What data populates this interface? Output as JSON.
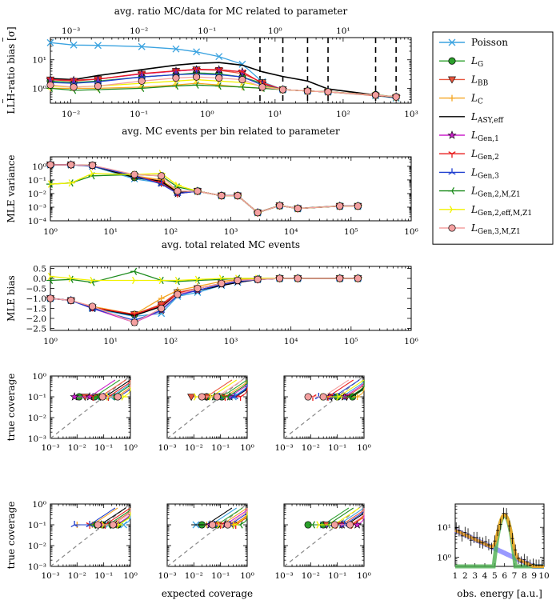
{
  "chart_data": [
    {
      "panel": "llh",
      "type": "line",
      "xscale": "log",
      "yscale": "log",
      "xlim": [
        0.005,
        1000
      ],
      "ylim": [
        0.3,
        60
      ],
      "xlabel": "avg. MC events per bin related to parameter",
      "ylabel": "LLH-ratio bias [σ]",
      "top_xlabel": "avg. ratio MC/data for MC related to parameter",
      "top_xlim": [
        0.0005,
        100
      ],
      "xticks": [
        "10⁻²",
        "10⁻¹",
        "10⁰",
        "10¹",
        "10²",
        "10³"
      ],
      "yticks": [
        "10⁰",
        "10¹"
      ],
      "top_xticks": [
        "10⁻³",
        "10⁻²",
        "10⁻¹",
        "10⁰",
        "10¹"
      ],
      "dashed_x": [
        6,
        13,
        30,
        60,
        300,
        600
      ],
      "x": [
        0.005,
        0.011,
        0.025,
        0.11,
        0.35,
        0.7,
        1.5,
        3.3,
        6.5,
        13,
        30,
        60,
        300,
        600
      ],
      "series": [
        {
          "name": "Poisson",
          "values": [
            40,
            33,
            32,
            29,
            24,
            19,
            13,
            7,
            1.7,
            0.9,
            0.8,
            0.75,
            0.55,
            0.45
          ]
        },
        {
          "name": "L_G",
          "values": [
            1.8,
            1.6,
            1.8,
            2.5,
            3,
            3.5,
            3.2,
            2.5,
            1.5,
            0.9,
            0.8,
            0.75,
            0.6,
            0.5
          ]
        },
        {
          "name": "L_BB",
          "values": [
            2,
            1.8,
            2.1,
            3.2,
            4,
            4.5,
            4.3,
            3.3,
            1.6,
            0.9,
            0.8,
            0.75,
            0.55,
            0.48
          ]
        },
        {
          "name": "L_C",
          "values": [
            1,
            1,
            1,
            1.1,
            1.3,
            1.5,
            1.3,
            1.1,
            1,
            0.9,
            0.8,
            0.75,
            0.58,
            0.5
          ]
        },
        {
          "name": "L_ASY,eff",
          "values": [
            2.2,
            2,
            2.8,
            4.5,
            6.5,
            7.5,
            8,
            6.5,
            3.8,
            2.6,
            1.8,
            0.95,
            0.58,
            0.48
          ]
        },
        {
          "name": "L_Gen,1",
          "values": [
            2,
            1.9,
            2.1,
            3.2,
            4,
            4.5,
            4.5,
            3.8,
            1.5,
            0.9,
            0.8,
            0.75,
            0.58,
            0.5
          ]
        },
        {
          "name": "L_Gen,2",
          "values": [
            2,
            1.9,
            2.1,
            3.3,
            4.1,
            4.6,
            4.5,
            3.8,
            1.5,
            0.9,
            0.8,
            0.75,
            0.58,
            0.5
          ]
        },
        {
          "name": "L_Gen,3",
          "values": [
            1.6,
            1.5,
            1.7,
            2.5,
            3,
            3.2,
            3,
            2.5,
            1.3,
            0.9,
            0.8,
            0.75,
            0.58,
            0.5
          ]
        },
        {
          "name": "L_Gen,2,M,Z1",
          "values": [
            1,
            0.85,
            0.9,
            1,
            1.2,
            1.3,
            1.2,
            1.1,
            1,
            0.9,
            0.8,
            0.75,
            0.58,
            0.5
          ]
        },
        {
          "name": "L_Gen,2,eff,M,Z1",
          "values": [
            1.2,
            1.1,
            1.2,
            1.5,
            1.8,
            2,
            1.8,
            1.6,
            1.2,
            0.9,
            0.8,
            0.75,
            0.58,
            0.5
          ]
        },
        {
          "name": "L_Gen,3,M,Z1",
          "values": [
            1.3,
            1.1,
            1.2,
            1.8,
            2.3,
            2.5,
            2.3,
            2,
            1.1,
            0.9,
            0.8,
            0.75,
            0.58,
            0.5
          ]
        }
      ]
    },
    {
      "panel": "variance",
      "type": "line",
      "xscale": "log",
      "yscale": "log",
      "xlim": [
        1,
        1000000
      ],
      "ylim": [
        0.0001,
        5
      ],
      "xlabel": "avg. total related MC events",
      "ylabel": "MLE variance",
      "xticks": [
        "10⁰",
        "10¹",
        "10²",
        "10³",
        "10⁴",
        "10⁵",
        "10⁶"
      ],
      "yticks": [
        "10⁰",
        "10⁻¹",
        "10⁻²",
        "10⁻³",
        "10⁻⁴"
      ],
      "x": [
        1,
        2.2,
        5,
        25,
        70,
        130,
        280,
        700,
        1300,
        2800,
        6500,
        13000,
        65000,
        130000
      ],
      "series": [
        {
          "name": "Poisson",
          "values": [
            1.3,
            1.3,
            1,
            0.12,
            0.06,
            0.012,
            0.015,
            0.007,
            0.007,
            0.0004,
            0.0013,
            0.0008,
            0.0012,
            0.0012
          ]
        },
        {
          "name": "L_G",
          "values": [
            1.3,
            1.3,
            1.2,
            0.15,
            0.07,
            0.012,
            0.015,
            0.007,
            0.007,
            0.0004,
            0.0013,
            0.0008,
            0.0012,
            0.0012
          ]
        },
        {
          "name": "L_BB",
          "values": [
            1.3,
            1.3,
            1.2,
            0.2,
            0.08,
            0.012,
            0.015,
            0.007,
            0.007,
            0.0004,
            0.0013,
            0.0008,
            0.0012,
            0.0012
          ]
        },
        {
          "name": "L_C",
          "values": [
            1.3,
            1.3,
            1.2,
            0.2,
            0.1,
            0.015,
            0.015,
            0.007,
            0.007,
            0.0004,
            0.0013,
            0.0008,
            0.0012,
            0.0012
          ]
        },
        {
          "name": "L_ASY,eff",
          "values": [
            1.3,
            1.3,
            1.1,
            0.15,
            0.08,
            0.012,
            0.015,
            0.007,
            0.007,
            0.0004,
            0.0013,
            0.0008,
            0.0012,
            0.0012
          ]
        },
        {
          "name": "L_Gen,1",
          "values": [
            1.3,
            1.3,
            1.1,
            0.2,
            0.06,
            0.01,
            0.015,
            0.007,
            0.007,
            0.0004,
            0.0013,
            0.0008,
            0.0012,
            0.0012
          ]
        },
        {
          "name": "L_Gen,2",
          "values": [
            1.3,
            1.3,
            1.1,
            0.2,
            0.06,
            0.01,
            0.015,
            0.007,
            0.007,
            0.0004,
            0.0013,
            0.0008,
            0.0012,
            0.0012
          ]
        },
        {
          "name": "L_Gen,3",
          "values": [
            1.3,
            1.3,
            1.1,
            0.2,
            0.05,
            0.01,
            0.015,
            0.007,
            0.007,
            0.0004,
            0.0013,
            0.0008,
            0.0012,
            0.0012
          ]
        },
        {
          "name": "L_Gen,2,M,Z1",
          "values": [
            0.05,
            0.06,
            0.2,
            0.25,
            0.2,
            0.03,
            0.015,
            0.007,
            0.007,
            0.0004,
            0.0013,
            0.0008,
            0.0012,
            0.0012
          ]
        },
        {
          "name": "L_Gen,2,eff,M,Z1",
          "values": [
            0.05,
            0.06,
            0.3,
            0.25,
            0.3,
            0.04,
            0.015,
            0.007,
            0.007,
            0.0004,
            0.0013,
            0.0008,
            0.0012,
            0.0012
          ]
        },
        {
          "name": "L_Gen,3,M,Z1",
          "values": [
            1.3,
            1.3,
            1.2,
            0.25,
            0.2,
            0.015,
            0.015,
            0.007,
            0.007,
            0.0004,
            0.0013,
            0.0008,
            0.0012,
            0.0012
          ]
        }
      ]
    },
    {
      "panel": "bias",
      "type": "line",
      "xscale": "log",
      "yscale": "linear",
      "xlim": [
        1,
        1000000
      ],
      "ylim": [
        -2.6,
        0.6
      ],
      "ylabel": "MLE bias",
      "xticks": [
        "10⁰",
        "10¹",
        "10²",
        "10³",
        "10⁴",
        "10⁵",
        "10⁶"
      ],
      "yticks": [
        "0.5",
        "0.0",
        "−0.5",
        "−1.0",
        "−1.5",
        "−2.0",
        "−2.5"
      ],
      "x": [
        1,
        2.2,
        5,
        25,
        70,
        130,
        280,
        700,
        1300,
        2800,
        6500,
        13000,
        65000,
        130000
      ],
      "series": [
        {
          "name": "Poisson",
          "values": [
            -1,
            -1.1,
            -1.5,
            -1.9,
            -1.75,
            -0.9,
            -0.7,
            -0.35,
            -0.2,
            -0.05,
            0,
            0,
            0,
            0
          ]
        },
        {
          "name": "L_G",
          "values": [
            -1,
            -1.1,
            -1.45,
            -1.8,
            -1.3,
            -0.7,
            -0.5,
            -0.25,
            -0.1,
            -0.05,
            0,
            0,
            0,
            0
          ]
        },
        {
          "name": "L_BB",
          "values": [
            -1,
            -1.1,
            -1.45,
            -1.8,
            -1.3,
            -0.7,
            -0.5,
            -0.25,
            -0.1,
            -0.05,
            0,
            0,
            0,
            0
          ]
        },
        {
          "name": "L_C",
          "values": [
            -1,
            -1.1,
            -1.4,
            -1.8,
            -1,
            -0.6,
            -0.4,
            -0.15,
            -0.05,
            0,
            0,
            0,
            0,
            0
          ]
        },
        {
          "name": "L_ASY,eff",
          "values": [
            -1,
            -1.1,
            -1.45,
            -1.85,
            -1.4,
            -0.8,
            -0.6,
            -0.35,
            -0.2,
            -0.05,
            0,
            0,
            0,
            0
          ]
        },
        {
          "name": "L_Gen,1",
          "values": [
            -1,
            -1.1,
            -1.5,
            -2.2,
            -1.6,
            -0.8,
            -0.6,
            -0.3,
            -0.15,
            -0.05,
            0,
            0,
            0,
            0
          ]
        },
        {
          "name": "L_Gen,2",
          "values": [
            -1,
            -1.1,
            -1.45,
            -1.8,
            -1.35,
            -0.75,
            -0.5,
            -0.25,
            -0.1,
            -0.05,
            0,
            0,
            0,
            0
          ]
        },
        {
          "name": "L_Gen,3",
          "values": [
            -1,
            -1.1,
            -1.5,
            -2.1,
            -1.6,
            -0.85,
            -0.6,
            -0.3,
            -0.15,
            -0.05,
            0,
            0,
            0,
            0
          ]
        },
        {
          "name": "L_Gen,2,M,Z1",
          "values": [
            -0.1,
            -0.05,
            -0.2,
            0.35,
            -0.1,
            -0.15,
            -0.1,
            -0.05,
            0,
            0,
            0,
            0,
            0,
            0
          ]
        },
        {
          "name": "L_Gen,2,eff,M,Z1",
          "values": [
            0.1,
            0,
            -0.1,
            -0.1,
            -0.1,
            -0.1,
            -0.05,
            0,
            0,
            0,
            0,
            0,
            0,
            0
          ]
        },
        {
          "name": "L_Gen,3,M,Z1",
          "values": [
            -1,
            -1.1,
            -1.4,
            -2.2,
            -1.5,
            -0.8,
            -0.5,
            -0.25,
            -0.1,
            -0.05,
            0,
            0,
            0,
            0
          ]
        }
      ]
    },
    {
      "panel": "coverage",
      "type": "line",
      "count": 6,
      "xscale": "log",
      "yscale": "log",
      "xlim": [
        0.001,
        1
      ],
      "ylim": [
        0.001,
        1
      ],
      "xlabel": "expected coverage",
      "ylabel": "true coverage",
      "xticks": [
        "10⁻³",
        "10⁻²",
        "10⁻¹",
        "10⁰"
      ],
      "yticks": [
        "10⁰",
        "10⁻¹",
        "10⁻²",
        "10⁻³"
      ]
    },
    {
      "panel": "spectrum",
      "type": "line",
      "xscale": "linear",
      "yscale": "log",
      "xlim": [
        1,
        10
      ],
      "ylim": [
        0.5,
        60
      ],
      "xlabel": "obs. energy [a.u.]",
      "xticks": [
        "1",
        "2",
        "3",
        "4",
        "5",
        "6",
        "7",
        "8",
        "9",
        "10"
      ],
      "yticks": [
        "10⁰",
        "10¹"
      ]
    }
  ],
  "legend": {
    "entries": [
      {
        "label": "Poisson",
        "color": "#3ba3e0",
        "marker": "x"
      },
      {
        "label": "L_G",
        "color": "#2ca02c",
        "marker": "o"
      },
      {
        "label": "L_BB",
        "color": "#e8553d",
        "marker": "v"
      },
      {
        "label": "L_C",
        "color": "#f5a623",
        "marker": "+"
      },
      {
        "label": "L_ASY,eff",
        "color": "#000000",
        "marker": "none"
      },
      {
        "label": "L_Gen,1",
        "color": "#cc22cc",
        "marker": "*"
      },
      {
        "label": "L_Gen,2",
        "color": "#e81c1c",
        "marker": "tri-down"
      },
      {
        "label": "L_Gen,3",
        "color": "#1f3fcf",
        "marker": "tri-up"
      },
      {
        "label": "L_Gen,2,M,Z1",
        "color": "#1a8a1a",
        "marker": "tri-left"
      },
      {
        "label": "L_Gen,2,eff,M,Z1",
        "color": "#f2f200",
        "marker": "tri-right"
      },
      {
        "label": "L_Gen,3,M,Z1",
        "color": "#f4a0a0",
        "marker": "o"
      }
    ]
  }
}
